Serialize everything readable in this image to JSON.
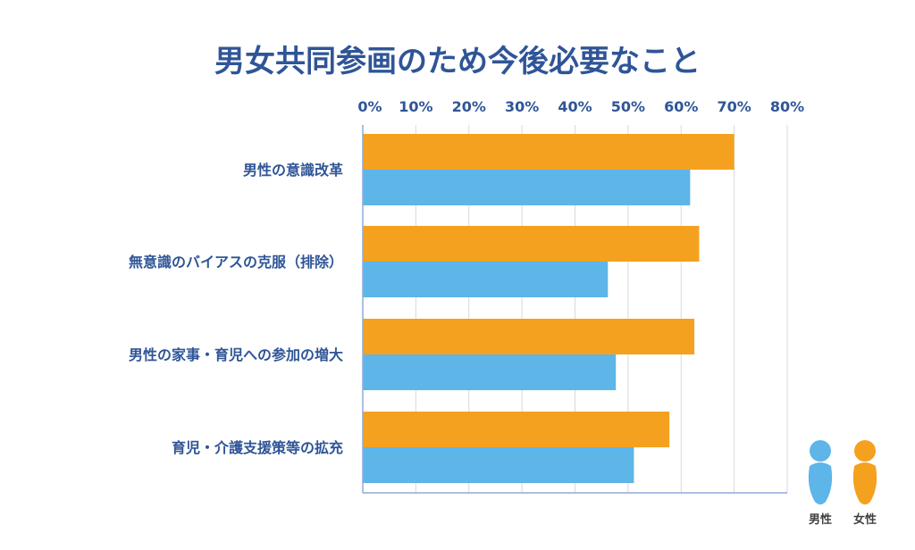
{
  "chart_data": {
    "type": "bar",
    "orientation": "horizontal",
    "title": "男女共同参画のため今後必要なこと",
    "categories": [
      "男性の意識改革",
      "無意識のバイアスの克服（排除）",
      "男性の家事・育児への参加の増大",
      "育児・介護支援策等の拡充"
    ],
    "series": [
      {
        "name": "女性",
        "color": "#f4a11f",
        "values": [
          70,
          63.4,
          62.5,
          57.8
        ]
      },
      {
        "name": "男性",
        "color": "#5db5e8",
        "values": [
          61.7,
          46.2,
          47.7,
          51.1
        ]
      }
    ],
    "xlim": [
      0,
      80
    ],
    "xticks": [
      "0%",
      "10%",
      "20%",
      "30%",
      "40%",
      "50%",
      "60%",
      "70%",
      "80%"
    ],
    "grid": true,
    "legend_position": "bottom-right",
    "legend": [
      "男性",
      "女性"
    ]
  }
}
